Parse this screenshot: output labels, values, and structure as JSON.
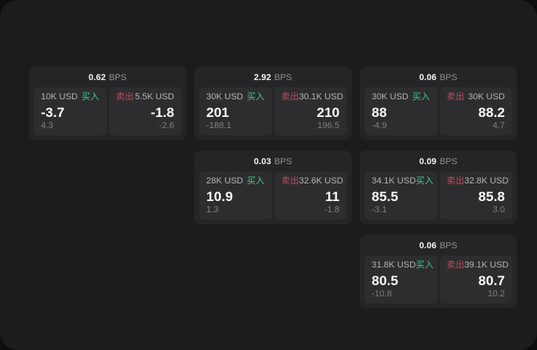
{
  "labels": {
    "bps_unit": "BPS",
    "buy": "买入",
    "sell": "卖出"
  },
  "colors": {
    "backdrop": "#0e0e0e",
    "page_bg": "#1c1c1e",
    "card_bg": "#252527",
    "panel_bg": "#2d2d2f",
    "buy_green": "#3fce8b",
    "sell_red": "#c8495f"
  },
  "cards": [
    {
      "bps": "0.62",
      "buy": {
        "amount": "10K USD",
        "price": "-3.7",
        "delta": "4.3"
      },
      "sell": {
        "amount": "5.5K USD",
        "price": "-1.8",
        "delta": "-2.6"
      }
    },
    {
      "bps": "2.92",
      "buy": {
        "amount": "30K USD",
        "price": "201",
        "delta": "-188.1"
      },
      "sell": {
        "amount": "30.1K USD",
        "price": "210",
        "delta": "196.5"
      }
    },
    {
      "bps": "0.06",
      "buy": {
        "amount": "30K USD",
        "price": "88",
        "delta": "-4.9"
      },
      "sell": {
        "amount": "30K USD",
        "price": "88.2",
        "delta": "4.7"
      }
    },
    {
      "bps": "0.03",
      "buy": {
        "amount": "28K USD",
        "price": "10.9",
        "delta": "1.3"
      },
      "sell": {
        "amount": "32.6K USD",
        "price": "11",
        "delta": "-1.8"
      }
    },
    {
      "bps": "0.09",
      "buy": {
        "amount": "34.1K USD",
        "price": "85.5",
        "delta": "-3.1"
      },
      "sell": {
        "amount": "32.8K USD",
        "price": "85.8",
        "delta": "3.0"
      }
    },
    {
      "bps": "0.06",
      "buy": {
        "amount": "31.8K USD",
        "price": "80.5",
        "delta": "-10.8"
      },
      "sell": {
        "amount": "39.1K USD",
        "price": "80.7",
        "delta": "10.2"
      }
    }
  ]
}
